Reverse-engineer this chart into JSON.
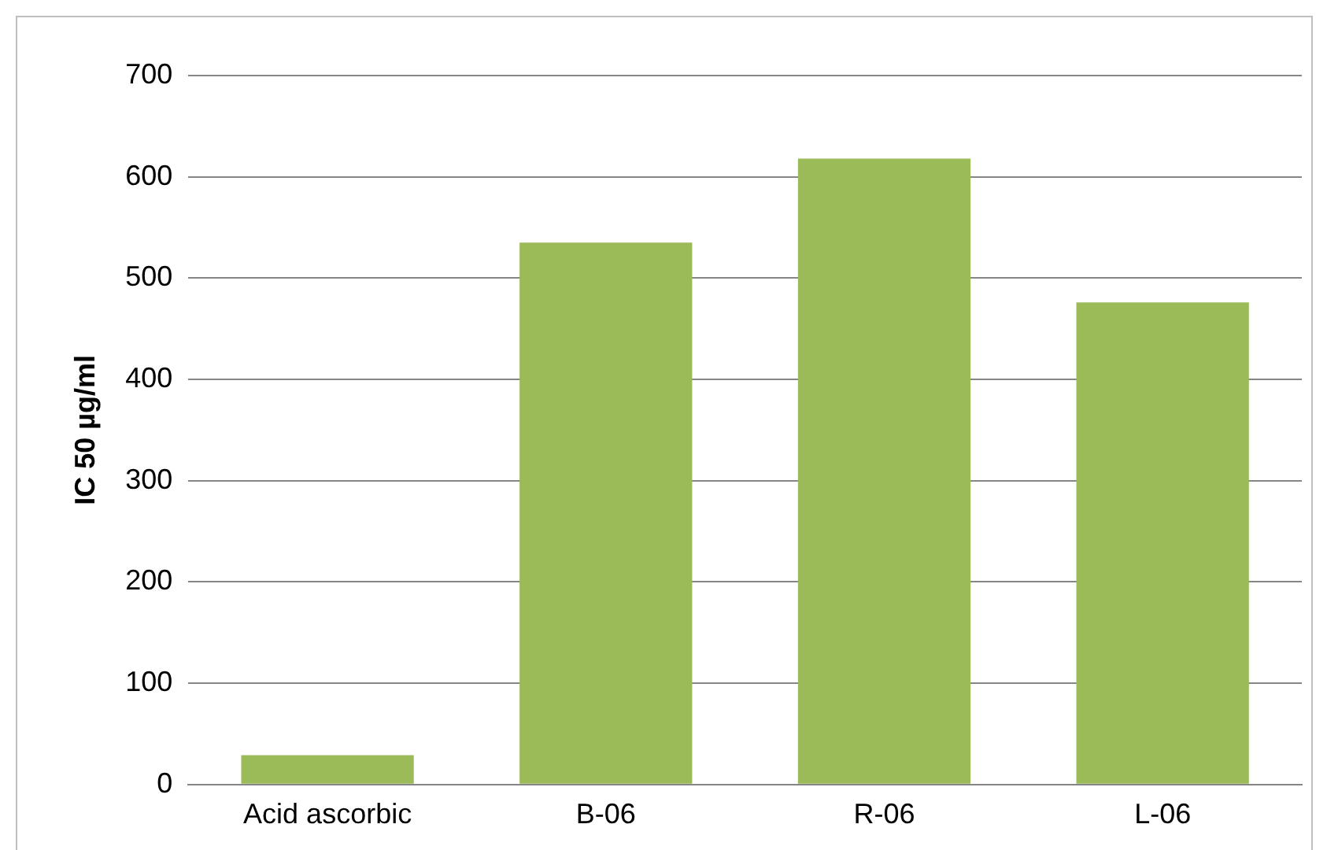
{
  "chart_data": {
    "type": "bar",
    "ylabel": "IC 50 µg/ml",
    "categories": [
      "Acid ascorbic",
      "B-06",
      "R-06",
      "L-06"
    ],
    "values": [
      29,
      535,
      618,
      476
    ],
    "color": "#9bbb59",
    "ylim": [
      0,
      700
    ],
    "yticks": [
      0,
      100,
      200,
      300,
      400,
      500,
      600,
      700
    ],
    "grid": "y",
    "legend": false
  }
}
